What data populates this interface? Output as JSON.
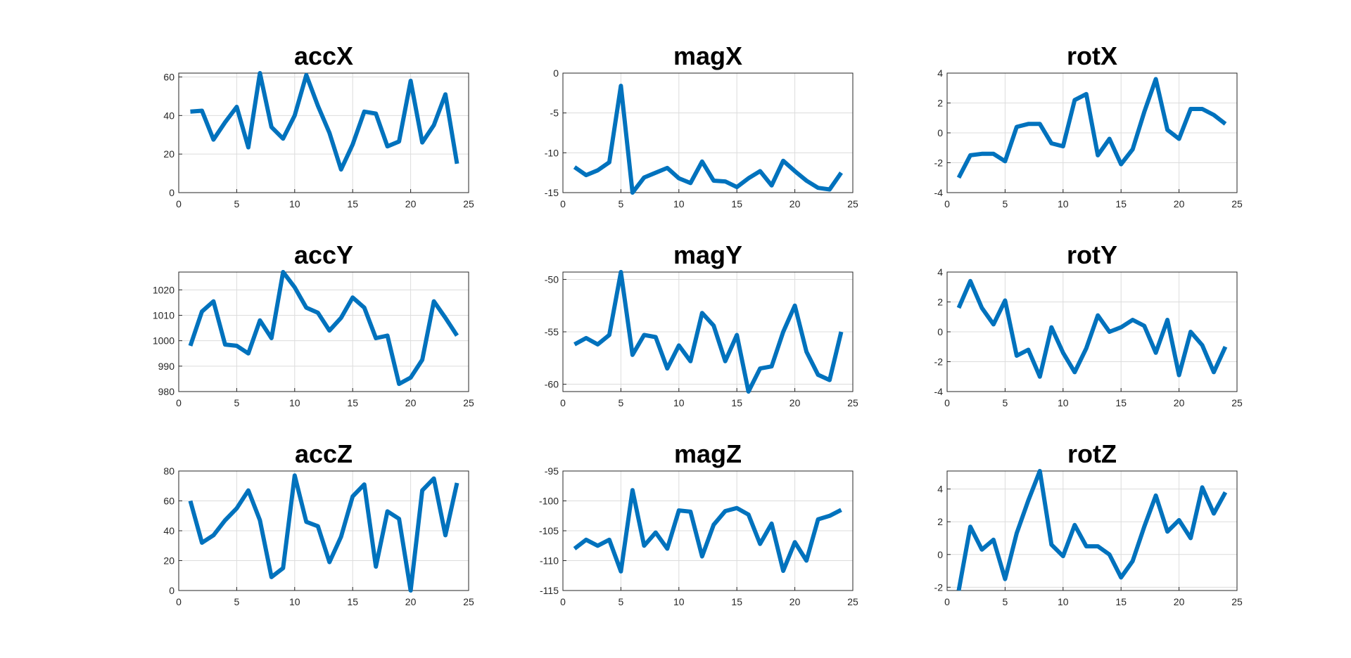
{
  "figure": {
    "background": "#ffffff",
    "line_color": "#0072BD"
  },
  "chart_data": [
    {
      "type": "line",
      "title": "accX",
      "grid": true,
      "xlim": [
        0,
        25
      ],
      "xticks": [
        0,
        5,
        10,
        15,
        20,
        25
      ],
      "ylim": [
        0,
        62
      ],
      "yticks": [
        0,
        20,
        40,
        60
      ],
      "series": [
        {
          "x": [
            1,
            2,
            3,
            4,
            5,
            6,
            7,
            8,
            9,
            10,
            11,
            12,
            13,
            14,
            15,
            16,
            17,
            18,
            19,
            20,
            21,
            22,
            23,
            24
          ],
          "values": [
            42,
            42.5,
            27.5,
            36.5,
            44.5,
            23.5,
            62,
            34,
            28,
            40,
            61,
            45,
            31,
            12,
            25,
            42,
            41,
            24,
            26.5,
            58,
            26,
            35,
            51,
            15
          ]
        }
      ]
    },
    {
      "type": "line",
      "title": "magX",
      "grid": true,
      "xlim": [
        0,
        25
      ],
      "xticks": [
        0,
        5,
        10,
        15,
        20,
        25
      ],
      "ylim": [
        -15,
        0
      ],
      "yticks": [
        -15,
        -10,
        -5,
        0
      ],
      "series": [
        {
          "x": [
            1,
            2,
            3,
            4,
            5,
            6,
            7,
            8,
            9,
            10,
            11,
            12,
            13,
            14,
            15,
            16,
            17,
            18,
            19,
            20,
            21,
            22,
            23,
            24
          ],
          "values": [
            -11.8,
            -12.8,
            -12.2,
            -11.2,
            -1.6,
            -15,
            -13.1,
            -12.5,
            -11.9,
            -13.2,
            -13.8,
            -11.1,
            -13.5,
            -13.6,
            -14.3,
            -13.2,
            -12.3,
            -14.1,
            -11,
            -12.3,
            -13.5,
            -14.4,
            -14.6,
            -12.5
          ]
        }
      ]
    },
    {
      "type": "line",
      "title": "rotX",
      "grid": true,
      "xlim": [
        0,
        25
      ],
      "xticks": [
        0,
        5,
        10,
        15,
        20,
        25
      ],
      "ylim": [
        -4,
        4
      ],
      "yticks": [
        -4,
        -2,
        0,
        2,
        4
      ],
      "series": [
        {
          "x": [
            1,
            2,
            3,
            4,
            5,
            6,
            7,
            8,
            9,
            10,
            11,
            12,
            13,
            14,
            15,
            16,
            17,
            18,
            19,
            20,
            21,
            22,
            23,
            24
          ],
          "values": [
            -3,
            -1.5,
            -1.4,
            -1.4,
            -1.9,
            0.4,
            0.6,
            0.6,
            -0.7,
            -0.9,
            2.2,
            2.6,
            -1.5,
            -0.4,
            -2.1,
            -1.1,
            1.4,
            3.6,
            0.2,
            -0.4,
            1.6,
            1.6,
            1.2,
            0.6
          ]
        }
      ]
    },
    {
      "type": "line",
      "title": "accY",
      "grid": true,
      "xlim": [
        0,
        25
      ],
      "xticks": [
        0,
        5,
        10,
        15,
        20,
        25
      ],
      "ylim": [
        980,
        1027
      ],
      "yticks": [
        980,
        990,
        1000,
        1010,
        1020
      ],
      "series": [
        {
          "x": [
            1,
            2,
            3,
            4,
            5,
            6,
            7,
            8,
            9,
            10,
            11,
            12,
            13,
            14,
            15,
            16,
            17,
            18,
            19,
            20,
            21,
            22,
            23,
            24
          ],
          "values": [
            998,
            1011.5,
            1015.5,
            998.5,
            998,
            995,
            1008,
            1001,
            1027,
            1021,
            1013,
            1011,
            1004,
            1009,
            1017,
            1013,
            1001,
            1002,
            983,
            985.5,
            992.5,
            1015.5,
            1009,
            1002
          ]
        }
      ]
    },
    {
      "type": "line",
      "title": "magY",
      "grid": true,
      "xlim": [
        0,
        25
      ],
      "xticks": [
        0,
        5,
        10,
        15,
        20,
        25
      ],
      "ylim": [
        -60.7,
        -49.3
      ],
      "yticks": [
        -60,
        -55,
        -50
      ],
      "series": [
        {
          "x": [
            1,
            2,
            3,
            4,
            5,
            6,
            7,
            8,
            9,
            10,
            11,
            12,
            13,
            14,
            15,
            16,
            17,
            18,
            19,
            20,
            21,
            22,
            23,
            24
          ],
          "values": [
            -56.2,
            -55.6,
            -56.2,
            -55.3,
            -49.3,
            -57.2,
            -55.3,
            -55.5,
            -58.5,
            -56.3,
            -57.8,
            -53.2,
            -54.4,
            -57.8,
            -55.3,
            -60.7,
            -58.5,
            -58.3,
            -55,
            -52.5,
            -56.9,
            -59.1,
            -59.6,
            -55
          ]
        }
      ]
    },
    {
      "type": "line",
      "title": "rotY",
      "grid": true,
      "xlim": [
        0,
        25
      ],
      "xticks": [
        0,
        5,
        10,
        15,
        20,
        25
      ],
      "ylim": [
        -4,
        4
      ],
      "yticks": [
        -4,
        -2,
        0,
        2,
        4
      ],
      "series": [
        {
          "x": [
            1,
            2,
            3,
            4,
            5,
            6,
            7,
            8,
            9,
            10,
            11,
            12,
            13,
            14,
            15,
            16,
            17,
            18,
            19,
            20,
            21,
            22,
            23,
            24
          ],
          "values": [
            1.6,
            3.4,
            1.6,
            0.5,
            2.1,
            -1.6,
            -1.2,
            -3,
            0.3,
            -1.4,
            -2.7,
            -1.1,
            1.1,
            0,
            0.3,
            0.8,
            0.4,
            -1.4,
            0.8,
            -2.9,
            0,
            -0.9,
            -2.7,
            -1
          ]
        }
      ]
    },
    {
      "type": "line",
      "title": "accZ",
      "grid": true,
      "xlim": [
        0,
        25
      ],
      "xticks": [
        0,
        5,
        10,
        15,
        20,
        25
      ],
      "ylim": [
        0,
        80
      ],
      "yticks": [
        0,
        20,
        40,
        60,
        80
      ],
      "series": [
        {
          "x": [
            1,
            2,
            3,
            4,
            5,
            6,
            7,
            8,
            9,
            10,
            11,
            12,
            13,
            14,
            15,
            16,
            17,
            18,
            19,
            20,
            21,
            22,
            23,
            24
          ],
          "values": [
            60,
            32,
            37,
            47,
            55,
            67,
            47,
            9,
            15,
            77,
            46,
            43,
            19,
            36,
            63,
            71,
            16,
            53,
            48,
            0,
            67,
            75,
            37,
            72
          ]
        }
      ]
    },
    {
      "type": "line",
      "title": "magZ",
      "grid": true,
      "xlim": [
        0,
        25
      ],
      "xticks": [
        0,
        5,
        10,
        15,
        20,
        25
      ],
      "ylim": [
        -115,
        -95
      ],
      "yticks": [
        -115,
        -110,
        -105,
        -100,
        -95
      ],
      "series": [
        {
          "x": [
            1,
            2,
            3,
            4,
            5,
            6,
            7,
            8,
            9,
            10,
            11,
            12,
            13,
            14,
            15,
            16,
            17,
            18,
            19,
            20,
            21,
            22,
            23,
            24
          ],
          "values": [
            -108,
            -106.5,
            -107.5,
            -106.5,
            -111.8,
            -98.2,
            -107.5,
            -105.3,
            -108,
            -101.6,
            -101.8,
            -109.3,
            -104,
            -101.7,
            -101.2,
            -102.3,
            -107.2,
            -103.8,
            -111.7,
            -106.9,
            -110,
            -103.1,
            -102.5,
            -101.5
          ]
        }
      ]
    },
    {
      "type": "line",
      "title": "rotZ",
      "grid": true,
      "xlim": [
        0,
        25
      ],
      "xticks": [
        0,
        5,
        10,
        15,
        20,
        25
      ],
      "ylim": [
        -2.2,
        5.1
      ],
      "yticks": [
        -2,
        0,
        2,
        4
      ],
      "series": [
        {
          "x": [
            1,
            2,
            3,
            4,
            5,
            6,
            7,
            8,
            9,
            10,
            11,
            12,
            13,
            14,
            15,
            16,
            17,
            18,
            19,
            20,
            21,
            22,
            23,
            24
          ],
          "values": [
            -2.2,
            1.7,
            0.3,
            0.9,
            -1.5,
            1.3,
            3.3,
            5.1,
            0.6,
            -0.1,
            1.8,
            0.5,
            0.5,
            0,
            -1.4,
            -0.4,
            1.7,
            3.6,
            1.4,
            2.1,
            1,
            4.1,
            2.5,
            3.8
          ]
        }
      ]
    }
  ]
}
